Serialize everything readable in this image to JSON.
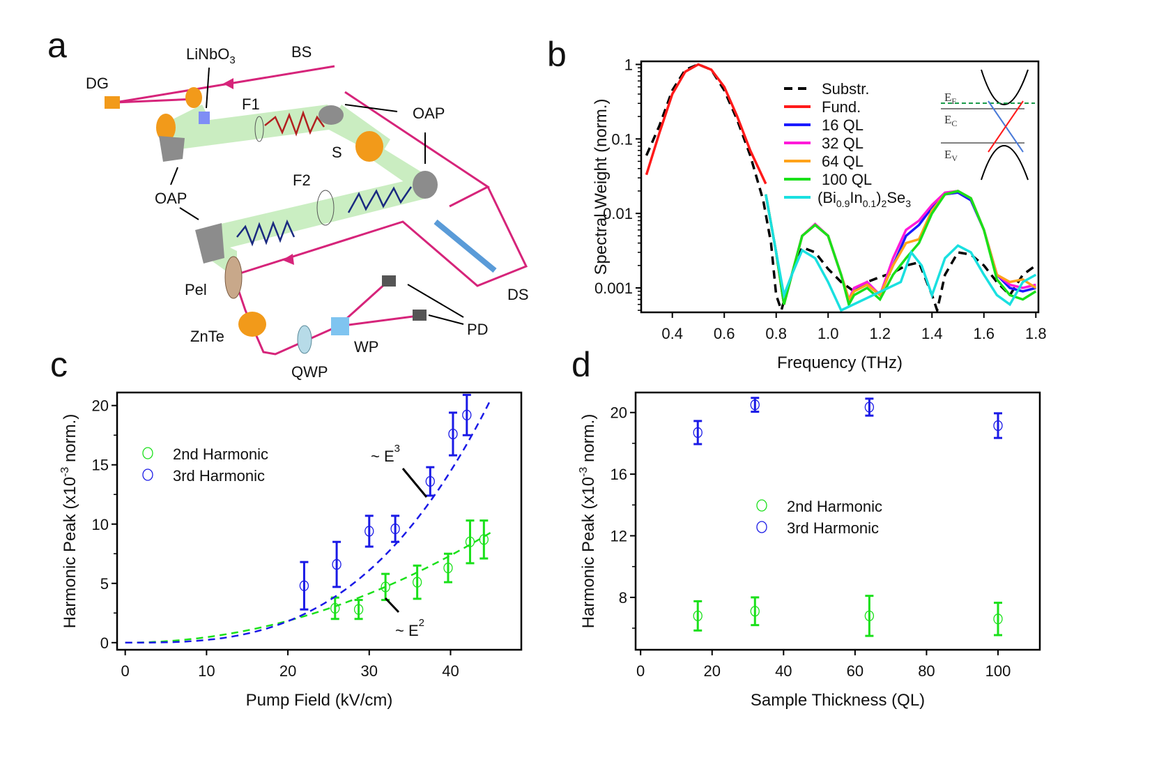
{
  "panel_labels": {
    "a": "a",
    "b": "b",
    "c": "c",
    "d": "d"
  },
  "diagram": {
    "labels": {
      "linbo3": "LiNbO",
      "linbo3_sub": "3",
      "bs": "BS",
      "dg": "DG",
      "f1": "F1",
      "oap_right": "OAP",
      "s": "S",
      "oap_left": "OAP",
      "f2": "F2",
      "pel": "Pel",
      "znte": "ZnTe",
      "ds": "DS",
      "pd": "PD",
      "wp": "WP",
      "qwp": "QWP"
    },
    "colors": {
      "beam": "#d6247a",
      "thz_beam": "#9fe08f",
      "mirror": "#8c8c8c",
      "crystal": "#f29a1a"
    }
  },
  "chart_data": [
    {
      "id": "b",
      "type": "line",
      "xlabel": "Frequency (THz)",
      "ylabel": "Spectral Weight (norm.)",
      "xlim": [
        0.28,
        1.81
      ],
      "ylim": [
        0.00047,
        1.1
      ],
      "yscale": "log",
      "xticks": [
        "0.4",
        "0.6",
        "0.8",
        "1.0",
        "1.2",
        "1.4",
        "1.6",
        "1.8"
      ],
      "yticks": [
        "1",
        "0.1",
        "0.01",
        "0.001"
      ],
      "legend_position": "top-center",
      "inset": {
        "ef": "E",
        "ef_sub": "F",
        "ec": "E",
        "ec_sub": "C",
        "ev": "E",
        "ev_sub": "V"
      },
      "series": [
        {
          "name": "Substr.",
          "color": "#000000",
          "dashed": true,
          "x": [
            0.3,
            0.35,
            0.4,
            0.45,
            0.5,
            0.55,
            0.6,
            0.65,
            0.7,
            0.75,
            0.78,
            0.8,
            0.82,
            0.85,
            0.9,
            0.95,
            1.0,
            1.05,
            1.1,
            1.15,
            1.2,
            1.25,
            1.3,
            1.35,
            1.4,
            1.42,
            1.45,
            1.5,
            1.55,
            1.6,
            1.65,
            1.7,
            1.75,
            1.8
          ],
          "y": [
            0.06,
            0.15,
            0.45,
            0.85,
            1,
            0.85,
            0.45,
            0.18,
            0.06,
            0.015,
            0.004,
            0.0008,
            0.0005,
            0.0012,
            0.0035,
            0.003,
            0.0018,
            0.0012,
            0.0009,
            0.0012,
            0.0014,
            0.0016,
            0.002,
            0.0022,
            0.0008,
            0.0005,
            0.0015,
            0.003,
            0.0028,
            0.002,
            0.0012,
            0.0008,
            0.0015,
            0.002
          ]
        },
        {
          "name": "Fund.",
          "color": "#ff1a1a",
          "x": [
            0.3,
            0.35,
            0.4,
            0.45,
            0.5,
            0.55,
            0.6,
            0.65,
            0.7,
            0.76
          ],
          "y": [
            0.033,
            0.12,
            0.4,
            0.8,
            1,
            0.85,
            0.5,
            0.2,
            0.07,
            0.025
          ]
        },
        {
          "name": "16 QL",
          "color": "#1a1aff",
          "x": [
            0.76,
            0.8,
            0.83,
            0.86,
            0.9,
            0.95,
            1.0,
            1.05,
            1.08,
            1.1,
            1.15,
            1.2,
            1.25,
            1.3,
            1.35,
            1.4,
            1.45,
            1.5,
            1.55,
            1.6,
            1.65,
            1.7,
            1.75,
            1.8
          ],
          "y": [
            0.018,
            0.003,
            0.0006,
            0.0015,
            0.005,
            0.007,
            0.005,
            0.0015,
            0.0007,
            0.0009,
            0.0012,
            0.0008,
            0.002,
            0.005,
            0.007,
            0.012,
            0.018,
            0.019,
            0.015,
            0.006,
            0.0015,
            0.001,
            0.0009,
            0.001
          ]
        },
        {
          "name": "32 QL",
          "color": "#ff1ad9",
          "x": [
            0.76,
            0.8,
            0.83,
            0.86,
            0.9,
            0.95,
            1.0,
            1.05,
            1.08,
            1.1,
            1.15,
            1.2,
            1.25,
            1.3,
            1.35,
            1.4,
            1.45,
            1.5,
            1.55,
            1.6,
            1.65,
            1.7,
            1.75,
            1.8
          ],
          "y": [
            0.018,
            0.003,
            0.0006,
            0.0015,
            0.005,
            0.0072,
            0.005,
            0.0015,
            0.0007,
            0.001,
            0.0012,
            0.0008,
            0.0025,
            0.006,
            0.008,
            0.013,
            0.019,
            0.02,
            0.016,
            0.006,
            0.0015,
            0.0011,
            0.001,
            0.0011
          ]
        },
        {
          "name": "64 QL",
          "color": "#ffa31a",
          "x": [
            0.76,
            0.8,
            0.83,
            0.86,
            0.9,
            0.95,
            1.0,
            1.05,
            1.08,
            1.1,
            1.15,
            1.2,
            1.25,
            1.3,
            1.35,
            1.4,
            1.45,
            1.5,
            1.55,
            1.6,
            1.65,
            1.7,
            1.75,
            1.8
          ],
          "y": [
            0.018,
            0.003,
            0.0006,
            0.0015,
            0.005,
            0.007,
            0.005,
            0.0015,
            0.0007,
            0.0009,
            0.0011,
            0.0008,
            0.002,
            0.004,
            0.0045,
            0.011,
            0.018,
            0.02,
            0.016,
            0.006,
            0.0015,
            0.0012,
            0.0013,
            0.001
          ]
        },
        {
          "name": "100 QL",
          "color": "#1ae01a",
          "x": [
            0.76,
            0.8,
            0.83,
            0.86,
            0.9,
            0.95,
            1.0,
            1.05,
            1.08,
            1.1,
            1.15,
            1.2,
            1.25,
            1.3,
            1.35,
            1.4,
            1.45,
            1.5,
            1.55,
            1.6,
            1.65,
            1.7,
            1.75,
            1.8
          ],
          "y": [
            0.018,
            0.003,
            0.0006,
            0.0015,
            0.005,
            0.007,
            0.005,
            0.0015,
            0.0006,
            0.0008,
            0.001,
            0.0007,
            0.0015,
            0.0025,
            0.004,
            0.01,
            0.018,
            0.02,
            0.016,
            0.006,
            0.0013,
            0.0008,
            0.0007,
            0.0009
          ]
        },
        {
          "name": "(Bi0.9In0.1)2Se3",
          "color": "#1ae0e0",
          "name_parts": [
            "(Bi",
            "0.9",
            "In",
            "0.1",
            ")",
            "2",
            "Se",
            "3"
          ],
          "x": [
            0.76,
            0.8,
            0.83,
            0.86,
            0.9,
            0.95,
            1.0,
            1.05,
            1.28,
            1.32,
            1.36,
            1.4,
            1.45,
            1.5,
            1.55,
            1.6,
            1.65,
            1.7,
            1.75,
            1.8
          ],
          "y": [
            0.018,
            0.003,
            0.0008,
            0.0015,
            0.0032,
            0.0025,
            0.0012,
            0.0005,
            0.0012,
            0.003,
            0.002,
            0.0008,
            0.0025,
            0.0037,
            0.003,
            0.0015,
            0.0008,
            0.0006,
            0.0012,
            0.0015
          ]
        }
      ]
    },
    {
      "id": "c",
      "type": "scatter",
      "xlabel": "Pump Field (kV/cm)",
      "ylabel": "Harmonic Peak (x10",
      "ylabel_sup": "-3",
      "ylabel_tail": " norm.)",
      "xlim": [
        -1,
        48.7
      ],
      "ylim": [
        -0.6,
        21.1
      ],
      "xticks": [
        "0",
        "10",
        "20",
        "30",
        "40"
      ],
      "yticks": [
        "0",
        "5",
        "10",
        "15",
        "20"
      ],
      "legend_position": "top-left",
      "annotations": {
        "e3": "~ E",
        "e3_sup": "3",
        "e2": "~ E",
        "e2_sup": "2"
      },
      "series": [
        {
          "name": "2nd Harmonic",
          "color": "#1ae01a",
          "x": [
            25.8,
            28.7,
            32,
            35.9,
            39.7,
            42.4,
            44.1
          ],
          "y": [
            2.9,
            2.8,
            4.7,
            5.1,
            6.3,
            8.5,
            8.7
          ],
          "err": [
            0.9,
            0.8,
            1.1,
            1.4,
            1.2,
            1.8,
            1.6
          ],
          "fit": {
            "label": "~ E^2",
            "power": 2,
            "coef": 0.0046
          }
        },
        {
          "name": "3rd Harmonic",
          "color": "#1a1ae6",
          "x": [
            22,
            26,
            30,
            33.2,
            37.5,
            40.3,
            42
          ],
          "y": [
            4.8,
            6.6,
            9.4,
            9.6,
            13.6,
            17.6,
            19.2
          ],
          "err": [
            2,
            1.9,
            1.3,
            1.1,
            1.2,
            1.8,
            1.7
          ],
          "fit": {
            "label": "~ E^3",
            "power": 3,
            "coef": 0.000226
          }
        }
      ]
    },
    {
      "id": "d",
      "type": "scatter",
      "xlabel": "Sample Thickness (QL)",
      "ylabel": "Harmonic Peak (x10",
      "ylabel_sup": "-3",
      "ylabel_tail": " norm.)",
      "xlim": [
        -1.4,
        111.7
      ],
      "ylim": [
        4.6,
        21.3
      ],
      "xticks": [
        "0",
        "20",
        "40",
        "60",
        "80",
        "100"
      ],
      "yticks": [
        "8",
        "12",
        "16",
        "20"
      ],
      "legend_position": "center",
      "series": [
        {
          "name": "2nd Harmonic",
          "color": "#1ae01a",
          "x": [
            16,
            32,
            64,
            100
          ],
          "y": [
            6.8,
            7.1,
            6.8,
            6.6
          ],
          "err": [
            0.95,
            0.9,
            1.3,
            1.05
          ]
        },
        {
          "name": "3rd Harmonic",
          "color": "#1a1ae6",
          "x": [
            16,
            32,
            64,
            100
          ],
          "y": [
            18.7,
            20.5,
            20.35,
            19.15
          ],
          "err": [
            0.75,
            0.45,
            0.55,
            0.8
          ]
        }
      ]
    }
  ]
}
